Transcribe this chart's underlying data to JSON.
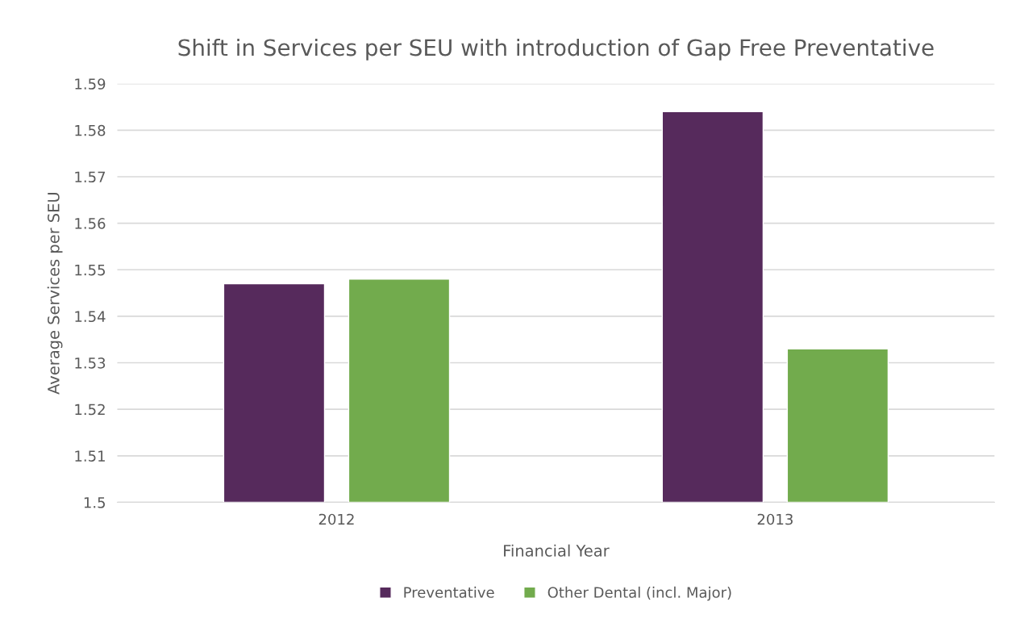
{
  "chart_data": {
    "type": "bar",
    "title": "Shift in Services per SEU with introduction of Gap Free Preventative",
    "xlabel": "Financial Year",
    "ylabel": "Average Services per SEU",
    "categories": [
      "2012",
      "2013"
    ],
    "series": [
      {
        "name": "Preventative",
        "color": "#562a5c",
        "values": [
          1.547,
          1.584
        ]
      },
      {
        "name": "Other Dental (incl. Major)",
        "color": "#72ab4d",
        "values": [
          1.548,
          1.533
        ]
      }
    ],
    "ylim": [
      1.5,
      1.59
    ],
    "yticks": [
      {
        "value": 1.5,
        "label": "1.5"
      },
      1.51,
      1.52,
      1.53,
      1.54,
      1.55,
      1.56,
      1.57,
      1.58,
      1.59
    ],
    "grid": "y",
    "legend": "bottom"
  }
}
